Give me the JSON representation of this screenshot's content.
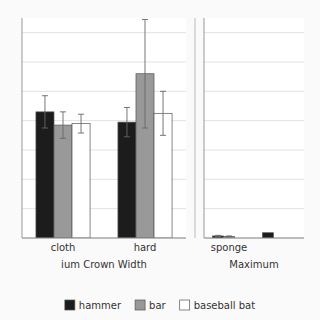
{
  "chart_data": [
    {
      "type": "bar",
      "x_label": "ium Crown Width",
      "categories": [
        "cloth",
        "hard"
      ],
      "series": [
        {
          "name": "hammer",
          "color": "#1c1c1c",
          "values": [
            4.3,
            3.95
          ],
          "errors": [
            0.55,
            0.5
          ]
        },
        {
          "name": "bar",
          "color": "#999999",
          "values": [
            3.85,
            5.6
          ],
          "errors": [
            0.45,
            1.85
          ]
        },
        {
          "name": "baseball bat",
          "color": "#ffffff",
          "values": [
            3.9,
            4.25
          ],
          "errors": [
            0.32,
            0.75
          ]
        }
      ],
      "ylim": [
        0,
        7.5
      ],
      "yticks": [
        0,
        1,
        2,
        3,
        4,
        5,
        6,
        7
      ],
      "grid": true,
      "tick_labels": "x",
      "legend": "bottom"
    },
    {
      "type": "bar",
      "x_label": "Maximum",
      "categories": [
        "sponge",
        null
      ],
      "series": [
        {
          "name": "hammer",
          "color": "#1c1c1c",
          "values": [
            0.07,
            0.18
          ],
          "errors": [
            0.02,
            null
          ]
        },
        {
          "name": "bar",
          "color": "#999999",
          "values": [
            0.055,
            null
          ],
          "errors": [
            0.015,
            null
          ]
        },
        {
          "name": "baseball bat",
          "color": "#ffffff",
          "values": [
            0.0,
            null
          ],
          "errors": [
            0.0,
            null
          ]
        }
      ],
      "ylim": [
        0,
        7.5
      ],
      "yticks": [
        0,
        1,
        2,
        3,
        4,
        5,
        6,
        7
      ],
      "grid": true,
      "tick_labels": "x"
    }
  ]
}
